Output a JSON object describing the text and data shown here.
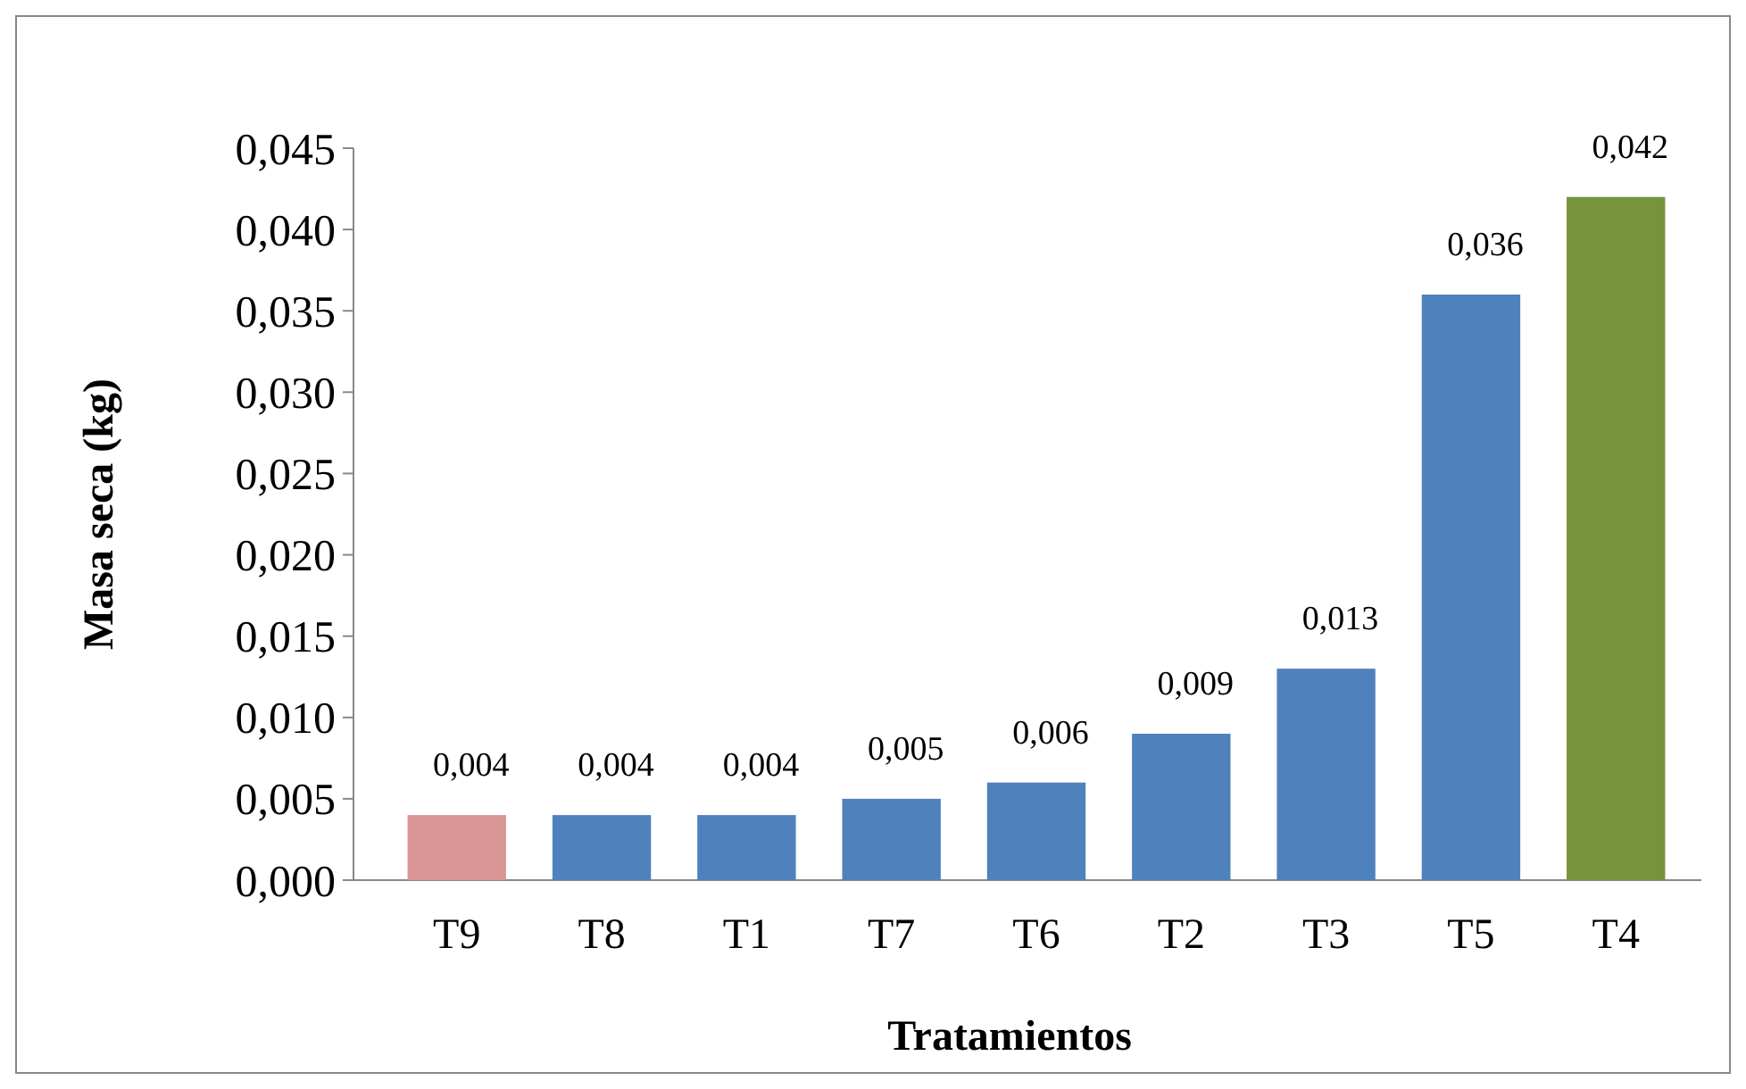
{
  "chart_data": {
    "type": "bar",
    "xlabel": "Tratamientos",
    "ylabel": "Masa seca (kg)",
    "categories": [
      "T9",
      "T8",
      "T1",
      "T7",
      "T6",
      "T2",
      "T3",
      "T5",
      "T4"
    ],
    "values": [
      0.004,
      0.004,
      0.004,
      0.005,
      0.006,
      0.009,
      0.013,
      0.036,
      0.042
    ],
    "colors": [
      "#d99694",
      "#4f81bd",
      "#4f81bd",
      "#4f81bd",
      "#4f81bd",
      "#4f81bd",
      "#4f81bd",
      "#4f81bd",
      "#77933c"
    ],
    "value_labels": [
      "0,004",
      "0,004",
      "0,004",
      "0,005",
      "0,006",
      "0,009",
      "0,013",
      "0,036",
      "0,042"
    ],
    "ylim": [
      0,
      0.045
    ],
    "yticks": [
      {
        "value": 0,
        "label": "0,000"
      },
      {
        "value": 0.005,
        "label": "0,005"
      },
      {
        "value": 0.01,
        "label": "0,010"
      },
      {
        "value": 0.015,
        "label": "0,015"
      },
      {
        "value": 0.02,
        "label": "0,020"
      },
      {
        "value": 0.025,
        "label": "0,025"
      },
      {
        "value": 0.03,
        "label": "0,030"
      },
      {
        "value": 0.035,
        "label": "0,035"
      },
      {
        "value": 0.04,
        "label": "0,040"
      },
      {
        "value": 0.045,
        "label": "0,045"
      }
    ],
    "grid": false
  }
}
